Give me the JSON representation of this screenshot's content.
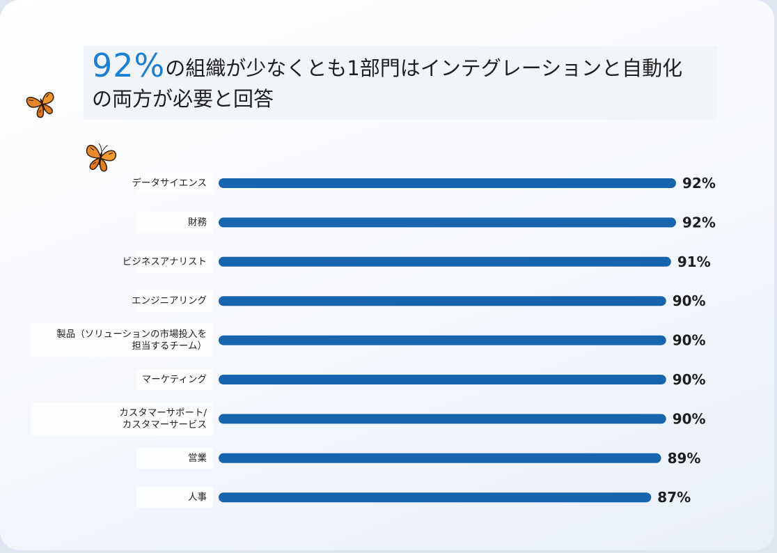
{
  "title": {
    "highlight": "92%",
    "line1_rest": "の組織が少なくとも1部門はインテグレーションと自動化",
    "line2": "の両方が必要と回答"
  },
  "icons": [
    "butterfly-icon",
    "butterfly-icon"
  ],
  "colors": {
    "bar": "#1765ad",
    "accent": "#1d7fd0"
  },
  "chart_data": {
    "type": "bar",
    "orientation": "horizontal",
    "title": "92%の組織が少なくとも1部門はインテグレーションと自動化の両方が必要と回答",
    "categories": [
      [
        "データサイエンス"
      ],
      [
        "財務"
      ],
      [
        "ビジネスアナリスト"
      ],
      [
        "エンジニアリング"
      ],
      [
        "製品（ソリューションの市場投入を",
        "担当するチーム）"
      ],
      [
        "マーケティング"
      ],
      [
        "カスタマーサポート/",
        "カスタマーサービス"
      ],
      [
        "営業"
      ],
      [
        "人事"
      ]
    ],
    "values": [
      92,
      92,
      91,
      90,
      90,
      90,
      90,
      89,
      87
    ],
    "value_labels": [
      "92%",
      "92%",
      "91%",
      "90%",
      "90%",
      "90%",
      "90%",
      "89%",
      "87%"
    ],
    "xlim": [
      0,
      92
    ],
    "grid": false,
    "legend": "none"
  }
}
